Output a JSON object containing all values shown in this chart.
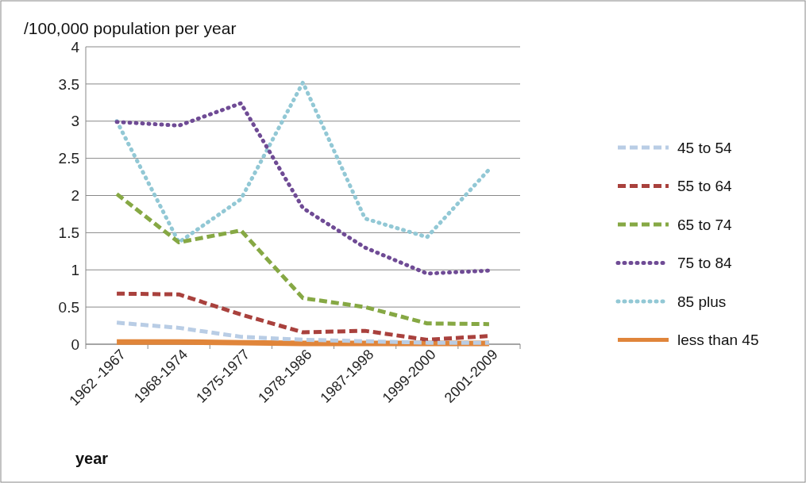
{
  "chart_data": {
    "type": "line",
    "ylabel": "/100,000 population per year",
    "xlabel": "year",
    "categories": [
      "1962 -1967",
      "1968-1974",
      "1975-1977",
      "1978-1986",
      "1987-1998",
      "1999-2000",
      "2001-2009"
    ],
    "series": [
      {
        "name": "45 to 54",
        "color": "#b9cde5",
        "line_style": "dashed",
        "values": [
          0.29,
          0.22,
          0.1,
          0.06,
          0.04,
          0.02,
          0.02
        ]
      },
      {
        "name": "55 to 64",
        "color": "#a9413d",
        "line_style": "dashed",
        "values": [
          0.68,
          0.67,
          0.4,
          0.16,
          0.18,
          0.06,
          0.11
        ]
      },
      {
        "name": "65 to 74",
        "color": "#86a844",
        "line_style": "dashed",
        "values": [
          2.02,
          1.37,
          1.53,
          0.62,
          0.5,
          0.28,
          0.27
        ]
      },
      {
        "name": "75 to 84",
        "color": "#6f4b95",
        "line_style": "dotted",
        "values": [
          2.99,
          2.94,
          3.24,
          1.83,
          1.3,
          0.95,
          0.99
        ]
      },
      {
        "name": "85 plus",
        "color": "#92c8d5",
        "line_style": "dotted",
        "values": [
          3.0,
          1.37,
          1.95,
          3.52,
          1.69,
          1.44,
          2.35
        ]
      },
      {
        "name": "less than 45",
        "color": "#e0853a",
        "line_style": "solid",
        "values": [
          0.03,
          0.03,
          0.02,
          0.01,
          0.01,
          0.01,
          0.01
        ]
      }
    ],
    "ylim": [
      0,
      4
    ],
    "yticks": [
      0,
      0.5,
      1,
      1.5,
      2,
      2.5,
      3,
      3.5,
      4
    ],
    "grid": "y",
    "legend": "right",
    "marker": "none"
  }
}
